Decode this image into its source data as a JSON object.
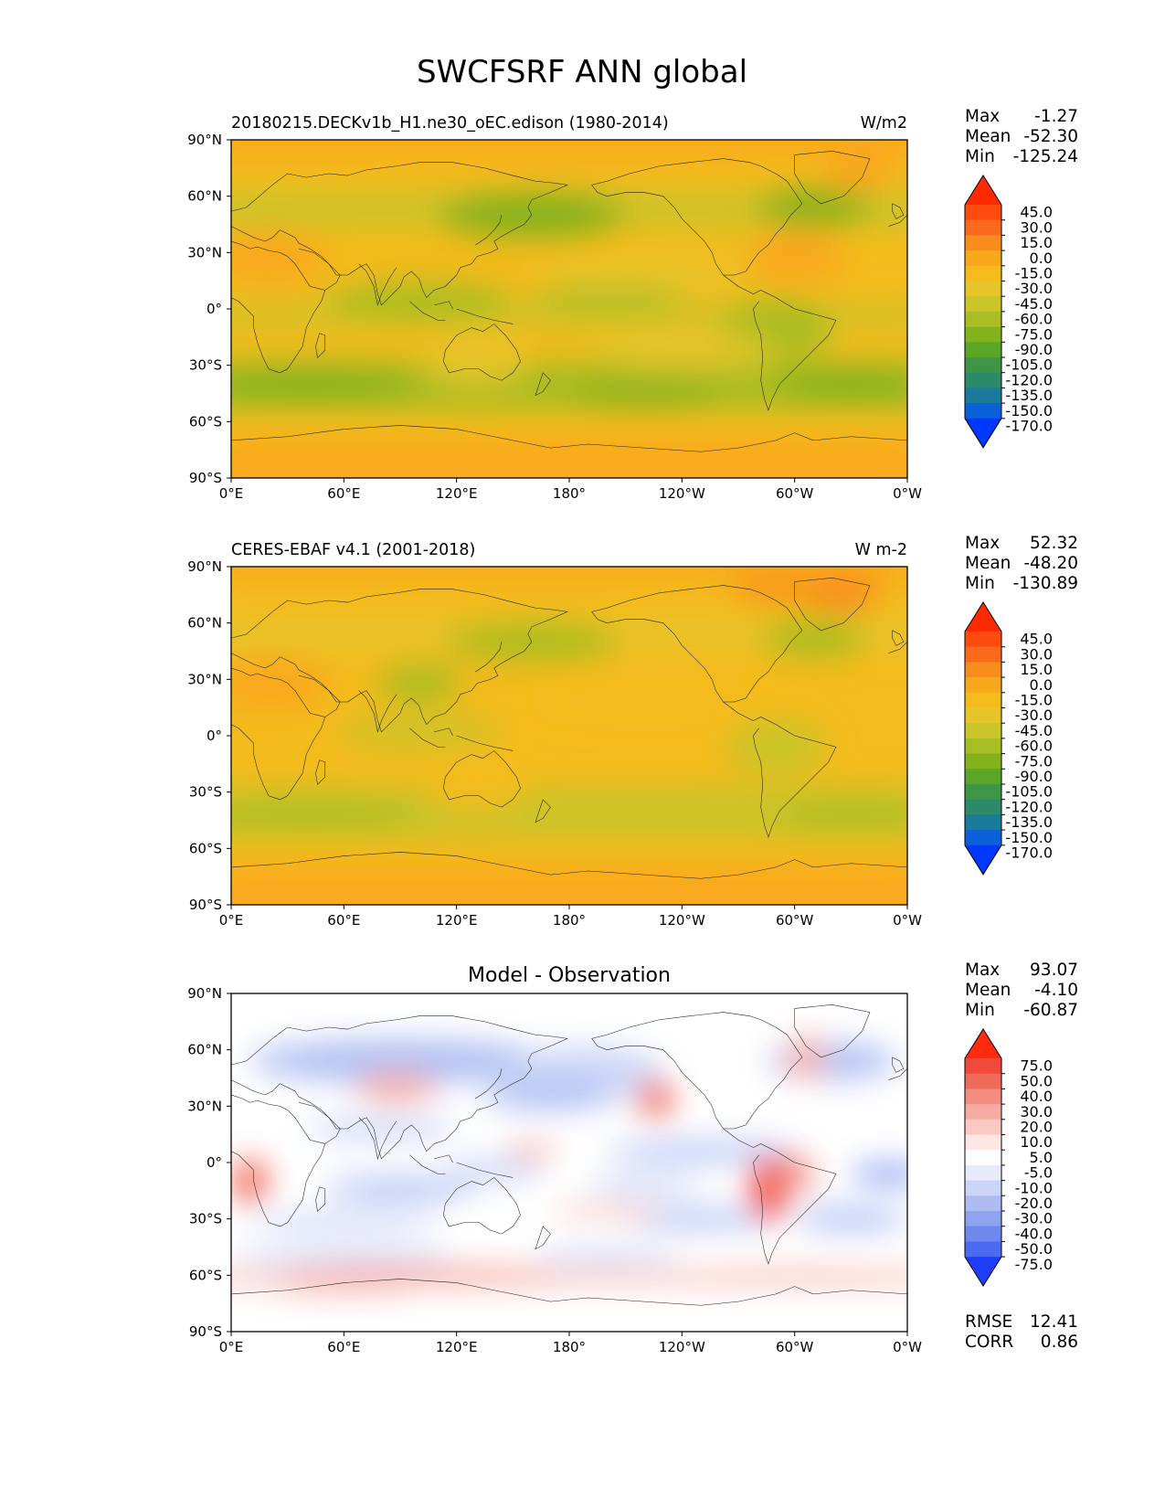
{
  "figure": {
    "title": "SWCFSRF ANN global"
  },
  "colors": {
    "land_lines": "#222222",
    "ocean_background": "#ffffff"
  },
  "chart_data": [
    {
      "type": "heatmap",
      "panel": "model",
      "left_title": "20180215.DECKv1b_H1.ne30_oEC.edison (1980-2014)",
      "center_title": "",
      "right_title": "W/m2",
      "stats": [
        {
          "label": "Max",
          "value": "-1.27"
        },
        {
          "label": "Mean",
          "value": "-52.30"
        },
        {
          "label": "Min",
          "value": "-125.24"
        }
      ],
      "x_ticks": [
        "0°E",
        "60°E",
        "120°E",
        "180°",
        "120°W",
        "60°W",
        "0°W"
      ],
      "y_ticks": [
        "90°N",
        "60°N",
        "30°N",
        "0°",
        "30°S",
        "60°S",
        "90°S"
      ],
      "xlim": [
        0,
        360
      ],
      "ylim": [
        -90,
        90
      ],
      "colorbar": {
        "levels": [
          "45.0",
          "30.0",
          "15.0",
          "0.0",
          "-15.0",
          "-30.0",
          "-45.0",
          "-60.0",
          "-75.0",
          "-90.0",
          "-105.0",
          "-120.0",
          "-135.0",
          "-150.0",
          "-170.0"
        ],
        "colors": [
          "#ff2a00",
          "#ff4a10",
          "#fb6a1c",
          "#f88d1e",
          "#f9a81b",
          "#f4bb1c",
          "#e6c42a",
          "#c9c52b",
          "#a9bd24",
          "#83b21c",
          "#5aa627",
          "#3e9545",
          "#2a8a6a",
          "#1a7a9a",
          "#0a60d8",
          "#0038ff"
        ]
      }
    },
    {
      "type": "heatmap",
      "panel": "observation",
      "left_title": "CERES-EBAF v4.1 (2001-2018)",
      "center_title": "",
      "right_title": "W m-2",
      "stats": [
        {
          "label": "Max",
          "value": "52.32"
        },
        {
          "label": "Mean",
          "value": "-48.20"
        },
        {
          "label": "Min",
          "value": "-130.89"
        }
      ],
      "x_ticks": [
        "0°E",
        "60°E",
        "120°E",
        "180°",
        "120°W",
        "60°W",
        "0°W"
      ],
      "y_ticks": [
        "90°N",
        "60°N",
        "30°N",
        "0°",
        "30°S",
        "60°S",
        "90°S"
      ],
      "xlim": [
        0,
        360
      ],
      "ylim": [
        -90,
        90
      ],
      "colorbar": {
        "levels": [
          "45.0",
          "30.0",
          "15.0",
          "0.0",
          "-15.0",
          "-30.0",
          "-45.0",
          "-60.0",
          "-75.0",
          "-90.0",
          "-105.0",
          "-120.0",
          "-135.0",
          "-150.0",
          "-170.0"
        ],
        "colors": [
          "#ff2a00",
          "#ff4a10",
          "#fb6a1c",
          "#f88d1e",
          "#f9a81b",
          "#f4bb1c",
          "#e6c42a",
          "#c9c52b",
          "#a9bd24",
          "#83b21c",
          "#5aa627",
          "#3e9545",
          "#2a8a6a",
          "#1a7a9a",
          "#0a60d8",
          "#0038ff"
        ]
      }
    },
    {
      "type": "heatmap",
      "panel": "difference",
      "left_title": "",
      "center_title": "Model - Observation",
      "right_title": "",
      "stats": [
        {
          "label": "Max",
          "value": "93.07"
        },
        {
          "label": "Mean",
          "value": "-4.10"
        },
        {
          "label": "Min",
          "value": "-60.87"
        }
      ],
      "bottom_stats": [
        {
          "label": "RMSE",
          "value": "12.41"
        },
        {
          "label": "CORR",
          "value": "0.86"
        }
      ],
      "x_ticks": [
        "0°E",
        "60°E",
        "120°E",
        "180°",
        "120°W",
        "60°W",
        "0°W"
      ],
      "y_ticks": [
        "90°N",
        "60°N",
        "30°N",
        "0°",
        "30°S",
        "60°S",
        "90°S"
      ],
      "xlim": [
        0,
        360
      ],
      "ylim": [
        -90,
        90
      ],
      "colorbar": {
        "levels": [
          "75.0",
          "50.0",
          "40.0",
          "30.0",
          "20.0",
          "10.0",
          "5.0",
          "-5.0",
          "-10.0",
          "-20.0",
          "-30.0",
          "-40.0",
          "-50.0",
          "-75.0"
        ],
        "colors": [
          "#ff2a10",
          "#f24a3a",
          "#f06a5a",
          "#f48c80",
          "#f7aca3",
          "#fac9c4",
          "#fde6e3",
          "#ffffff",
          "#e6ebfb",
          "#cbd5f7",
          "#adbdf3",
          "#8ea4f0",
          "#6f88ee",
          "#4c6af0",
          "#1e3eff"
        ]
      }
    }
  ]
}
